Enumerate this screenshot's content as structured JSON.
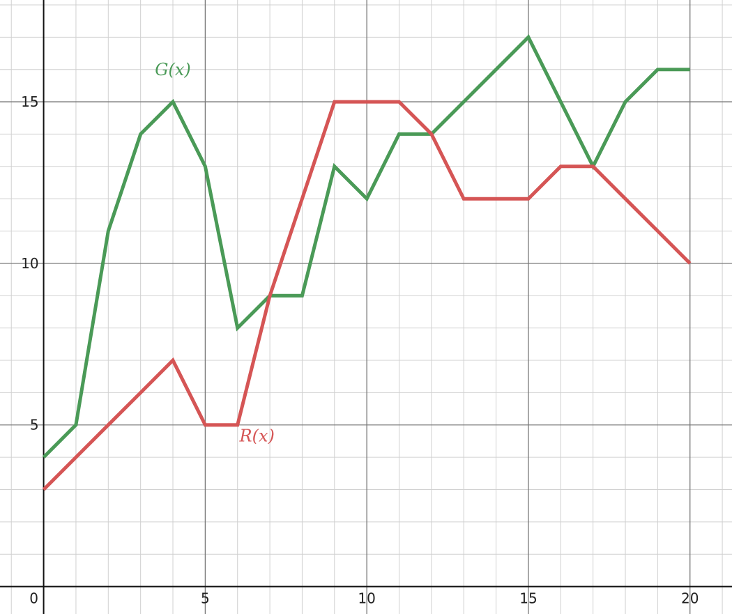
{
  "chart_data": {
    "type": "line",
    "xlim": [
      -1.35,
      21.3
    ],
    "ylim": [
      -0.85,
      18.15
    ],
    "grid": true,
    "minor_grid_step": 1,
    "major_grid_step": 5,
    "x_ticks": [
      {
        "value": 0,
        "label": "0"
      },
      {
        "value": 5,
        "label": "5"
      },
      {
        "value": 10,
        "label": "10"
      },
      {
        "value": 15,
        "label": "15"
      },
      {
        "value": 20,
        "label": "20"
      }
    ],
    "y_ticks": [
      {
        "value": 5,
        "label": "5"
      },
      {
        "value": 10,
        "label": "10"
      },
      {
        "value": 15,
        "label": "15"
      }
    ],
    "series": [
      {
        "name": "G(x)",
        "color": "#4a9a57",
        "x": [
          0,
          1,
          2,
          3,
          4,
          5,
          6,
          7,
          8,
          9,
          10,
          11,
          12,
          13,
          14,
          15,
          16,
          17,
          18,
          19,
          20
        ],
        "y": [
          4,
          5,
          11,
          14,
          15,
          13,
          8,
          9,
          9,
          13,
          12,
          14,
          14,
          15,
          16,
          17,
          15,
          13,
          15,
          16,
          16
        ],
        "label_anchor": {
          "x": 4,
          "y": 15
        }
      },
      {
        "name": "R(x)",
        "color": "#d55555",
        "x": [
          0,
          1,
          2,
          3,
          4,
          5,
          6,
          7,
          8,
          9,
          10,
          11,
          12,
          13,
          14,
          15,
          16,
          17,
          18,
          19,
          20
        ],
        "y": [
          3,
          4,
          5,
          6,
          7,
          5,
          5,
          9,
          12,
          15,
          15,
          15,
          14,
          12,
          12,
          12,
          13,
          13,
          12,
          11,
          10
        ],
        "label_anchor": {
          "x": 6,
          "y": 5
        }
      }
    ]
  }
}
